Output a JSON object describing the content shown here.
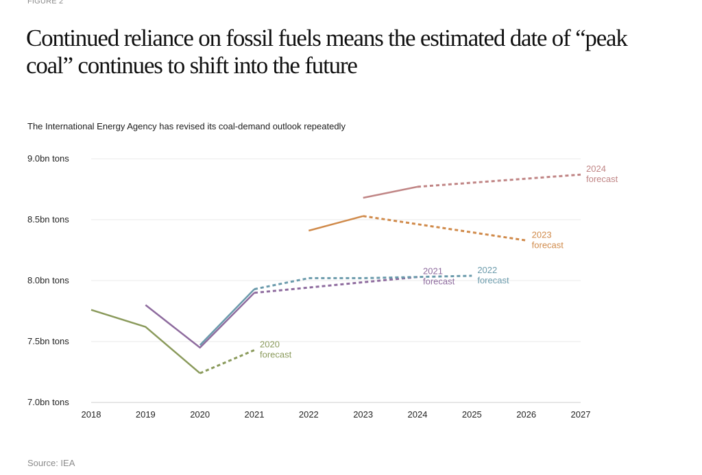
{
  "figure_label": "FIGURE 2",
  "headline": "Continued reliance on fossil fuels means the estimated date of “peak coal” continues to shift into the future",
  "source": "Source: IEA",
  "chart_data": {
    "type": "line",
    "title": "Continued reliance on fossil fuels means the estimated date of “peak coal” continues to shift into the future",
    "subtitle": "The International Energy Agency has revised its coal-demand outlook repeatedly",
    "xlabel": "",
    "ylabel": "",
    "xlim": [
      2018,
      2027
    ],
    "ylim": [
      7.0,
      9.0
    ],
    "x_ticks": [
      2018,
      2019,
      2020,
      2021,
      2022,
      2023,
      2024,
      2025,
      2026,
      2027
    ],
    "y_ticks": [
      {
        "value": 7.0,
        "label": "7.0bn tons"
      },
      {
        "value": 7.5,
        "label": "7.5bn tons"
      },
      {
        "value": 8.0,
        "label": "8.0bn tons"
      },
      {
        "value": 8.5,
        "label": "8.5bn tons"
      },
      {
        "value": 9.0,
        "label": "9.0bn tons"
      }
    ],
    "grid": true,
    "series": [
      {
        "name": "2020 forecast",
        "label_lines": [
          "2020",
          "forecast"
        ],
        "color": "#8a9a5b",
        "actual": [
          {
            "x": 2018,
            "y": 7.76
          },
          {
            "x": 2019,
            "y": 7.62
          },
          {
            "x": 2020,
            "y": 7.24
          }
        ],
        "forecast": [
          {
            "x": 2020,
            "y": 7.24
          },
          {
            "x": 2021,
            "y": 7.43
          }
        ],
        "label_at": {
          "x": 2021,
          "y": 7.43
        }
      },
      {
        "name": "2021 forecast",
        "label_lines": [
          "2021",
          "forecast"
        ],
        "color": "#8e6b9e",
        "actual": [
          {
            "x": 2019,
            "y": 7.8
          },
          {
            "x": 2020,
            "y": 7.45
          },
          {
            "x": 2021,
            "y": 7.9
          }
        ],
        "forecast": [
          {
            "x": 2021,
            "y": 7.9
          },
          {
            "x": 2024,
            "y": 8.03
          }
        ],
        "label_at": {
          "x": 2024,
          "y": 8.03
        }
      },
      {
        "name": "2022 forecast",
        "label_lines": [
          "2022",
          "forecast"
        ],
        "color": "#6a9aab",
        "actual": [
          {
            "x": 2020,
            "y": 7.47
          },
          {
            "x": 2021,
            "y": 7.93
          }
        ],
        "forecast": [
          {
            "x": 2021,
            "y": 7.93
          },
          {
            "x": 2022,
            "y": 8.02
          },
          {
            "x": 2023,
            "y": 8.02
          },
          {
            "x": 2024,
            "y": 8.03
          },
          {
            "x": 2025,
            "y": 8.04
          }
        ],
        "label_at": {
          "x": 2025,
          "y": 8.04
        }
      },
      {
        "name": "2023 forecast",
        "label_lines": [
          "2023",
          "forecast"
        ],
        "color": "#d08a4a",
        "actual": [
          {
            "x": 2022,
            "y": 8.41
          },
          {
            "x": 2023,
            "y": 8.53
          }
        ],
        "forecast": [
          {
            "x": 2023,
            "y": 8.53
          },
          {
            "x": 2026,
            "y": 8.33
          }
        ],
        "label_at": {
          "x": 2026,
          "y": 8.33
        }
      },
      {
        "name": "2024 forecast",
        "label_lines": [
          "2024",
          "forecast"
        ],
        "color": "#c08585",
        "actual": [
          {
            "x": 2023,
            "y": 8.68
          },
          {
            "x": 2024,
            "y": 8.77
          }
        ],
        "forecast": [
          {
            "x": 2024,
            "y": 8.77
          },
          {
            "x": 2027,
            "y": 8.87
          }
        ],
        "label_at": {
          "x": 2027,
          "y": 8.87
        }
      }
    ]
  }
}
